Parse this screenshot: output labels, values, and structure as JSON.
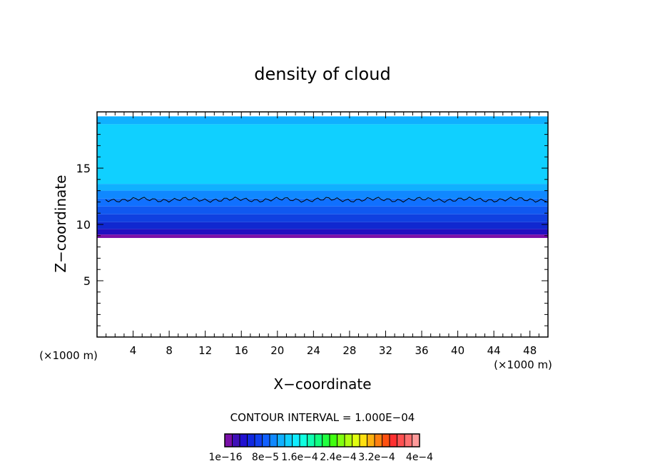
{
  "chart_data": {
    "type": "heatmap",
    "title": "density of cloud",
    "xlabel": "X−coordinate",
    "ylabel": "Z−coordinate",
    "x_unit": "(×1000 m)",
    "xlim": [
      0,
      50
    ],
    "ylim": [
      0,
      20
    ],
    "x_ticks": [
      4,
      8,
      12,
      16,
      20,
      24,
      28,
      32,
      36,
      40,
      44,
      48
    ],
    "y_ticks": [
      5,
      10,
      15
    ],
    "contour_interval_text": "CONTOUR INTERVAL = 1.000E−04",
    "colorbar": {
      "colors": [
        "#7a10a8",
        "#3f10b8",
        "#2010d0",
        "#1028e0",
        "#1040f0",
        "#1060ff",
        "#1088ff",
        "#10b0ff",
        "#10d0ff",
        "#10ecff",
        "#10ffe0",
        "#10ffb0",
        "#10ff80",
        "#20ff40",
        "#40ff10",
        "#80ff10",
        "#b0ff10",
        "#e0ff10",
        "#ffe010",
        "#ffb010",
        "#ff8010",
        "#ff5010",
        "#ff3030",
        "#ff5050",
        "#ff7070",
        "#ff9a9a"
      ],
      "labels": [
        "1e−16",
        "8e−5",
        "1.6e−4",
        "2.4e−4",
        "3.2e−4",
        "4e−4"
      ]
    },
    "field_bands": [
      {
        "z_bottom": 18.9,
        "z_top": 19.6,
        "color": "#10b0ff"
      },
      {
        "z_bottom": 13.6,
        "z_top": 18.9,
        "color": "#10d0ff"
      },
      {
        "z_bottom": 13.0,
        "z_top": 13.6,
        "color": "#10b0ff"
      },
      {
        "z_bottom": 12.3,
        "z_top": 13.0,
        "color": "#1088ff"
      },
      {
        "z_bottom": 11.6,
        "z_top": 12.3,
        "color": "#1070ff"
      },
      {
        "z_bottom": 10.9,
        "z_top": 11.6,
        "color": "#1058f0"
      },
      {
        "z_bottom": 10.2,
        "z_top": 10.9,
        "color": "#1040e0"
      },
      {
        "z_bottom": 9.6,
        "z_top": 10.2,
        "color": "#1028d0"
      },
      {
        "z_bottom": 9.1,
        "z_top": 9.6,
        "color": "#2010c0"
      },
      {
        "z_bottom": 8.8,
        "z_top": 9.1,
        "color": "#7a10a8"
      }
    ],
    "contour_line_z": 12.2
  }
}
